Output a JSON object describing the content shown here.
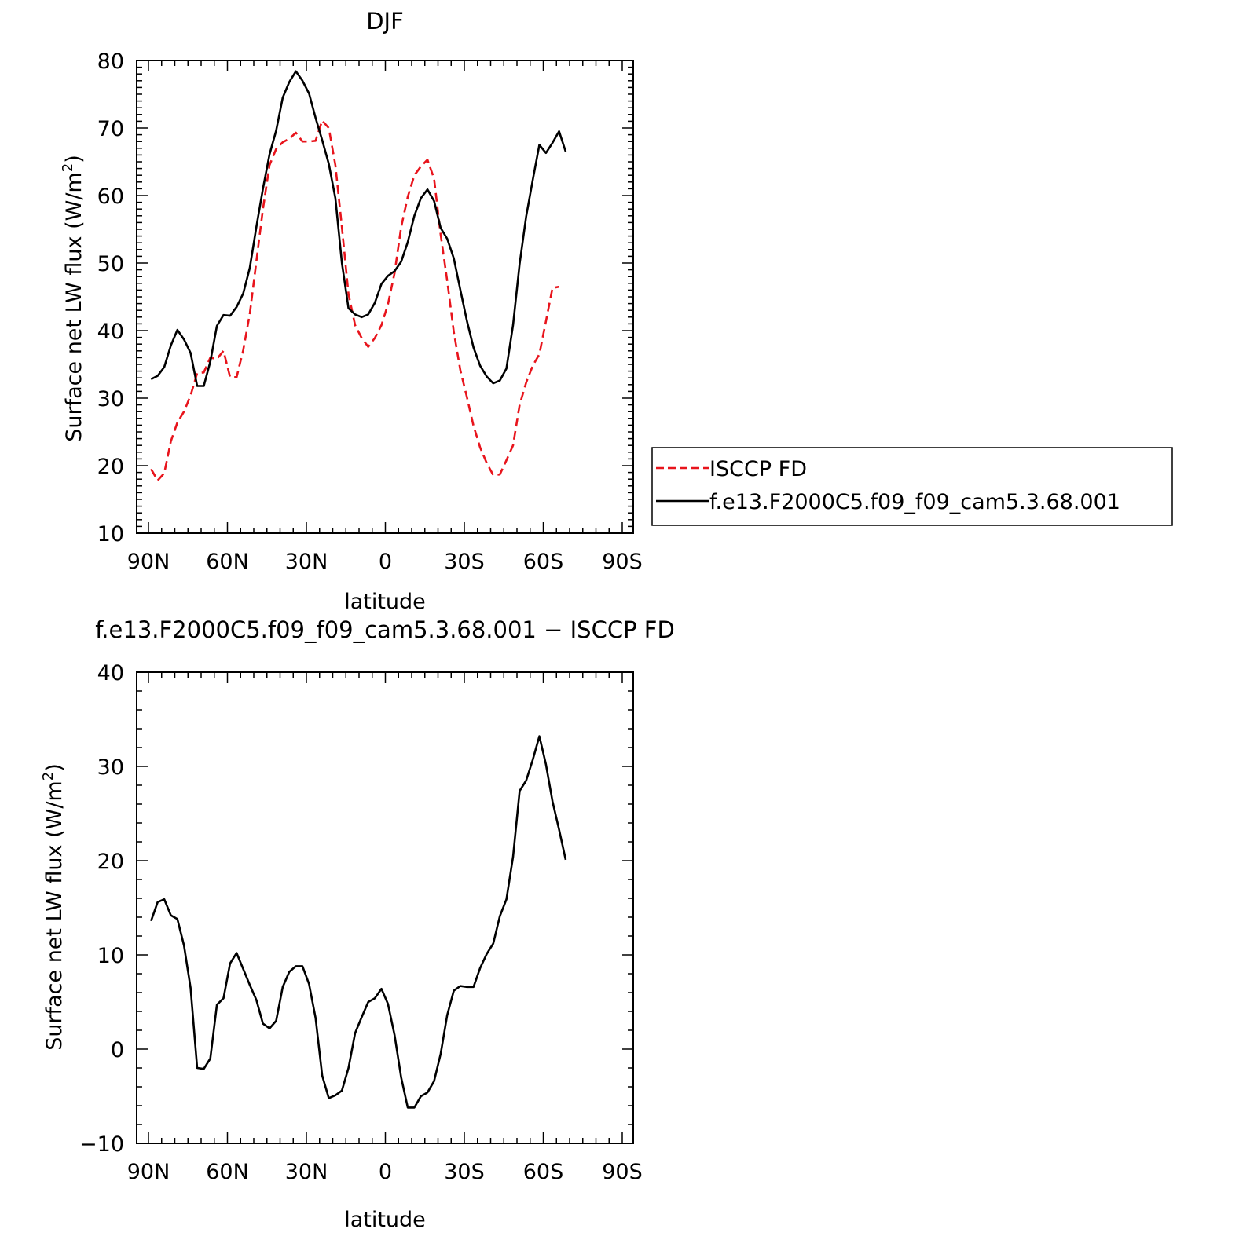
{
  "chart_data": [
    {
      "type": "line",
      "title": "DJF",
      "xlabel": "latitude",
      "ylabel_main": "Surface net LW flux (W/m",
      "ylabel_sup": "2",
      "ylabel_close": ")",
      "xlim": [
        90,
        -90
      ],
      "ylim": [
        10,
        80
      ],
      "xticks": [
        90,
        60,
        30,
        0,
        -30,
        -60,
        -90
      ],
      "xtick_labels": [
        "90N",
        "60N",
        "30N",
        "0",
        "30S",
        "60S",
        "90S"
      ],
      "yticks": [
        10,
        20,
        30,
        40,
        50,
        60,
        70,
        80
      ],
      "ytick_labels": [
        "10",
        "20",
        "30",
        "40",
        "50",
        "60",
        "70",
        "80"
      ],
      "legend_position": "right-outside",
      "series": [
        {
          "name": "ISCCP FD",
          "color": "#e8141c",
          "dash": "dashed",
          "points": [
            [
              89,
              19.5
            ],
            [
              86.5,
              17.8
            ],
            [
              84,
              18.9
            ],
            [
              81.5,
              23.6
            ],
            [
              79,
              26.4
            ],
            [
              76.5,
              28.0
            ],
            [
              74,
              30.4
            ],
            [
              71.5,
              33.7
            ],
            [
              69,
              33.8
            ],
            [
              66.5,
              36.0
            ],
            [
              64,
              35.8
            ],
            [
              61.5,
              37.0
            ],
            [
              59,
              33.1
            ],
            [
              56.5,
              33.1
            ],
            [
              54,
              37.1
            ],
            [
              51.5,
              42.5
            ],
            [
              49,
              50.3
            ],
            [
              46.5,
              58.0
            ],
            [
              44,
              64.5
            ],
            [
              41.5,
              66.9
            ],
            [
              39,
              67.9
            ],
            [
              36.5,
              68.4
            ],
            [
              34,
              69.3
            ],
            [
              31.5,
              68.0
            ],
            [
              29,
              68.0
            ],
            [
              26.5,
              68.1
            ],
            [
              24,
              71.1
            ],
            [
              21.5,
              70.0
            ],
            [
              19,
              64.5
            ],
            [
              16.5,
              55.3
            ],
            [
              14,
              45.4
            ],
            [
              11.5,
              40.8
            ],
            [
              9,
              38.9
            ],
            [
              6.5,
              37.6
            ],
            [
              4,
              38.9
            ],
            [
              1.5,
              40.8
            ],
            [
              -1,
              43.9
            ],
            [
              -3.5,
              48.5
            ],
            [
              -6,
              55.3
            ],
            [
              -8.5,
              59.8
            ],
            [
              -11,
              63.0
            ],
            [
              -13.5,
              64.3
            ],
            [
              -16,
              65.3
            ],
            [
              -18.5,
              62.5
            ],
            [
              -21,
              54.2
            ],
            [
              -23.5,
              47.4
            ],
            [
              -26,
              39.8
            ],
            [
              -28.5,
              34.1
            ],
            [
              -31,
              30.1
            ],
            [
              -33.5,
              25.9
            ],
            [
              -36,
              22.7
            ],
            [
              -38.5,
              20.4
            ],
            [
              -41,
              18.6
            ],
            [
              -43.5,
              18.7
            ],
            [
              -46,
              20.8
            ],
            [
              -48.5,
              23.0
            ],
            [
              -51,
              29.0
            ],
            [
              -53.5,
              32.3
            ],
            [
              -56,
              34.8
            ],
            [
              -58.5,
              36.5
            ],
            [
              -61,
              41.4
            ],
            [
              -63.5,
              46.3
            ],
            [
              -66,
              46.5
            ]
          ]
        },
        {
          "name": "f.e13.F2000C5.f09_f09_cam5.3.68.001",
          "color": "#000000",
          "dash": "solid",
          "points": [
            [
              89,
              32.8
            ],
            [
              86.5,
              33.3
            ],
            [
              84,
              34.6
            ],
            [
              81.5,
              37.8
            ],
            [
              79,
              40.1
            ],
            [
              76.5,
              38.7
            ],
            [
              74,
              36.7
            ],
            [
              71.5,
              31.8
            ],
            [
              69,
              31.8
            ],
            [
              66.5,
              35.4
            ],
            [
              64,
              40.7
            ],
            [
              61.5,
              42.3
            ],
            [
              59,
              42.2
            ],
            [
              56.5,
              43.5
            ],
            [
              54,
              45.5
            ],
            [
              51.5,
              49.3
            ],
            [
              49,
              55.4
            ],
            [
              46.5,
              61.0
            ],
            [
              44,
              66.1
            ],
            [
              41.5,
              69.6
            ],
            [
              39,
              74.5
            ],
            [
              36.5,
              76.8
            ],
            [
              34,
              78.4
            ],
            [
              31.5,
              77.0
            ],
            [
              29,
              75.1
            ],
            [
              26.5,
              71.5
            ],
            [
              24,
              68.2
            ],
            [
              21.5,
              64.7
            ],
            [
              19,
              59.6
            ],
            [
              16.5,
              50.0
            ],
            [
              14,
              43.3
            ],
            [
              11.5,
              42.4
            ],
            [
              9,
              42.0
            ],
            [
              6.5,
              42.4
            ],
            [
              4,
              44.1
            ],
            [
              1.5,
              46.9
            ],
            [
              -1,
              48.1
            ],
            [
              -3.5,
              48.8
            ],
            [
              -6,
              50.2
            ],
            [
              -8.5,
              53.1
            ],
            [
              -11,
              57.0
            ],
            [
              -13.5,
              59.6
            ],
            [
              -16,
              60.9
            ],
            [
              -18.5,
              59.2
            ],
            [
              -21,
              55.2
            ],
            [
              -23.5,
              53.6
            ],
            [
              -26,
              50.7
            ],
            [
              -28.5,
              46.0
            ],
            [
              -31,
              41.4
            ],
            [
              -33.5,
              37.5
            ],
            [
              -36,
              34.8
            ],
            [
              -38.5,
              33.2
            ],
            [
              -41,
              32.2
            ],
            [
              -43.5,
              32.6
            ],
            [
              -46,
              34.4
            ],
            [
              -48.5,
              40.8
            ],
            [
              -51,
              49.9
            ],
            [
              -53.5,
              56.9
            ],
            [
              -56,
              62.3
            ],
            [
              -58.5,
              67.5
            ],
            [
              -61,
              66.3
            ],
            [
              -63.5,
              67.8
            ],
            [
              -66,
              69.5
            ],
            [
              -68.5,
              66.5
            ]
          ]
        }
      ]
    },
    {
      "type": "line",
      "title": "f.e13.F2000C5.f09_f09_cam5.3.68.001 − ISCCP FD",
      "xlabel": "latitude",
      "ylabel_main": "Surface net LW flux (W/m",
      "ylabel_sup": "2",
      "ylabel_close": ")",
      "xlim": [
        90,
        -90
      ],
      "ylim": [
        -10,
        40
      ],
      "xticks": [
        90,
        60,
        30,
        0,
        -30,
        -60,
        -90
      ],
      "xtick_labels": [
        "90N",
        "60N",
        "30N",
        "0",
        "30S",
        "60S",
        "90S"
      ],
      "yticks": [
        -10,
        0,
        10,
        20,
        30,
        40
      ],
      "ytick_labels": [
        "−10",
        "0",
        "10",
        "20",
        "30",
        "40"
      ],
      "series": [
        {
          "name": "",
          "color": "#000000",
          "dash": "solid",
          "points": [
            [
              89,
              13.6
            ],
            [
              86.5,
              15.6
            ],
            [
              84,
              15.9
            ],
            [
              81.5,
              14.2
            ],
            [
              79,
              13.8
            ],
            [
              76.5,
              11.0
            ],
            [
              74,
              6.5
            ],
            [
              71.5,
              -2.0
            ],
            [
              69,
              -2.1
            ],
            [
              66.5,
              -1.0
            ],
            [
              64,
              4.7
            ],
            [
              61.5,
              5.4
            ],
            [
              59,
              9.1
            ],
            [
              56.5,
              10.2
            ],
            [
              54,
              8.5
            ],
            [
              51.5,
              6.8
            ],
            [
              49,
              5.2
            ],
            [
              46.5,
              2.7
            ],
            [
              44,
              2.2
            ],
            [
              41.5,
              3.0
            ],
            [
              39,
              6.6
            ],
            [
              36.5,
              8.2
            ],
            [
              34,
              8.8
            ],
            [
              31.5,
              8.8
            ],
            [
              29,
              6.9
            ],
            [
              26.5,
              3.3
            ],
            [
              24,
              -2.8
            ],
            [
              21.5,
              -5.2
            ],
            [
              19,
              -4.9
            ],
            [
              16.5,
              -4.4
            ],
            [
              14,
              -2.0
            ],
            [
              11.5,
              1.7
            ],
            [
              9,
              3.4
            ],
            [
              6.5,
              5.0
            ],
            [
              4,
              5.4
            ],
            [
              1.5,
              6.4
            ],
            [
              -1,
              4.8
            ],
            [
              -3.5,
              1.5
            ],
            [
              -6,
              -3.0
            ],
            [
              -8.5,
              -6.2
            ],
            [
              -11,
              -6.2
            ],
            [
              -13.5,
              -5.0
            ],
            [
              -16,
              -4.6
            ],
            [
              -18.5,
              -3.4
            ],
            [
              -21,
              -0.5
            ],
            [
              -23.5,
              3.6
            ],
            [
              -26,
              6.2
            ],
            [
              -28.5,
              6.7
            ],
            [
              -31,
              6.6
            ],
            [
              -33.5,
              6.6
            ],
            [
              -36,
              8.6
            ],
            [
              -38.5,
              10.1
            ],
            [
              -41,
              11.2
            ],
            [
              -43.5,
              14.1
            ],
            [
              -46,
              15.9
            ],
            [
              -48.5,
              20.4
            ],
            [
              -51,
              27.4
            ],
            [
              -53.5,
              28.5
            ],
            [
              -56,
              30.7
            ],
            [
              -58.5,
              33.2
            ],
            [
              -61,
              30.2
            ],
            [
              -63.5,
              26.3
            ],
            [
              -66,
              23.3
            ],
            [
              -68.5,
              20.1
            ]
          ]
        }
      ]
    }
  ]
}
